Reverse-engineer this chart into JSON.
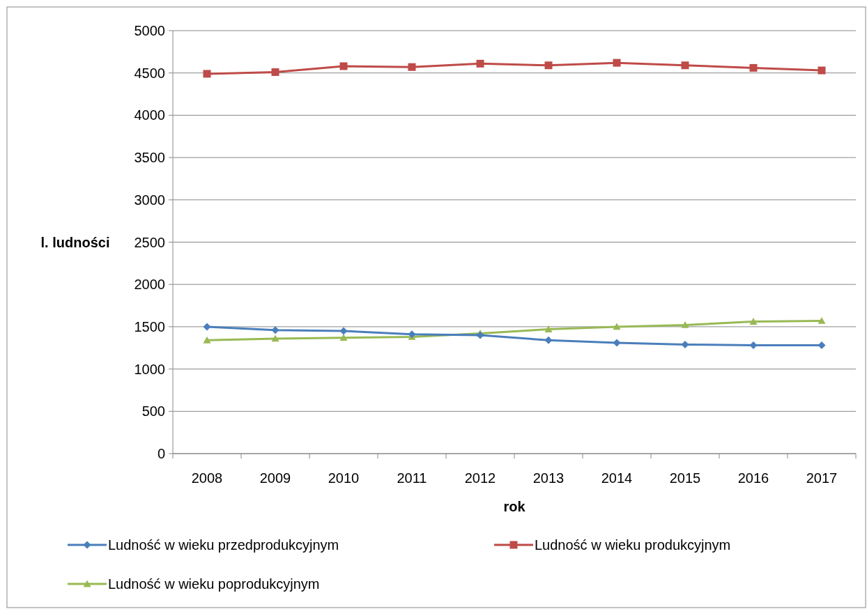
{
  "chart_data": {
    "type": "line",
    "xlabel": "rok",
    "ylabel": "l. ludności",
    "categories": [
      "2008",
      "2009",
      "2010",
      "2011",
      "2012",
      "2013",
      "2014",
      "2015",
      "2016",
      "2017"
    ],
    "series": [
      {
        "name": "Ludność w wieku przedprodukcyjnym",
        "color": "#4a7ebb",
        "marker": "diamond",
        "values": [
          1500,
          1460,
          1450,
          1410,
          1400,
          1340,
          1310,
          1290,
          1280,
          1280
        ]
      },
      {
        "name": "Ludność w wieku produkcyjnym",
        "color": "#be4b48",
        "marker": "square",
        "values": [
          4490,
          4510,
          4580,
          4570,
          4610,
          4590,
          4620,
          4590,
          4560,
          4530
        ]
      },
      {
        "name": "Ludność w wieku poprodukcyjnym",
        "color": "#98b954",
        "marker": "triangle",
        "values": [
          1340,
          1360,
          1370,
          1380,
          1420,
          1470,
          1500,
          1520,
          1560,
          1570
        ]
      }
    ],
    "ylim": [
      0,
      5000
    ],
    "yticks": [
      0,
      500,
      1000,
      1500,
      2000,
      2500,
      3000,
      3500,
      4000,
      4500,
      5000
    ],
    "grid": "y",
    "legend": "bottom",
    "line_style": "solid"
  }
}
